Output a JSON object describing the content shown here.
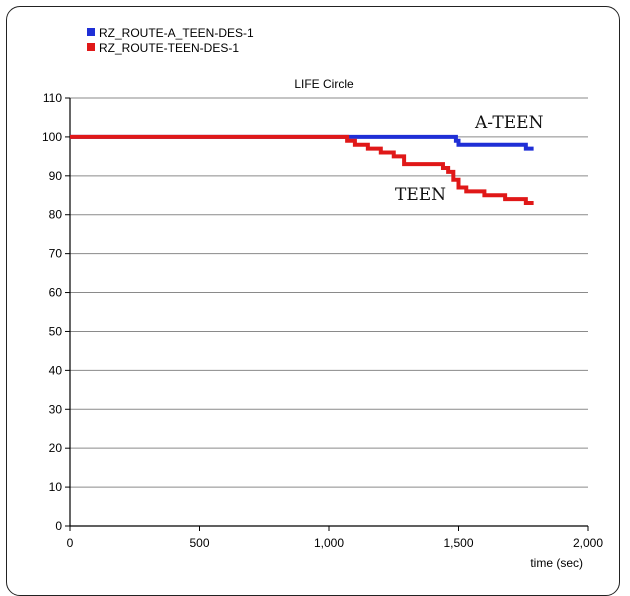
{
  "chart_data": {
    "type": "line",
    "title": "LIFE Circle",
    "xlabel": "time (sec)",
    "ylabel": "",
    "xlim": [
      0,
      2000
    ],
    "ylim": [
      0,
      110
    ],
    "x_ticks": [
      "0",
      "500",
      "1,000",
      "1,500",
      "2,000"
    ],
    "x_tick_values": [
      0,
      500,
      1000,
      1500,
      2000
    ],
    "y_ticks": [
      0,
      10,
      20,
      30,
      40,
      50,
      60,
      70,
      80,
      90,
      100,
      110
    ],
    "grid": "horizontal",
    "legend_position": "top-left",
    "series": [
      {
        "name": "RZ_ROUTE-A_TEEN-DES-1",
        "color": "#1f2fd6",
        "x": [
          0,
          1480,
          1490,
          1500,
          1700,
          1760,
          1790
        ],
        "y": [
          100,
          100,
          99,
          98,
          98,
          97,
          97
        ]
      },
      {
        "name": "RZ_ROUTE-TEEN-DES-1",
        "color": "#e01818",
        "x": [
          0,
          1050,
          1070,
          1100,
          1150,
          1200,
          1250,
          1290,
          1400,
          1440,
          1460,
          1480,
          1500,
          1530,
          1560,
          1600,
          1640,
          1680,
          1720,
          1760,
          1790
        ],
        "y": [
          100,
          100,
          99,
          98,
          97,
          96,
          95,
          93,
          93,
          92,
          91,
          89,
          87,
          86,
          86,
          85,
          85,
          84,
          84,
          83,
          83
        ]
      }
    ],
    "annotations": [
      "A-TEEN",
      "TEEN"
    ]
  }
}
